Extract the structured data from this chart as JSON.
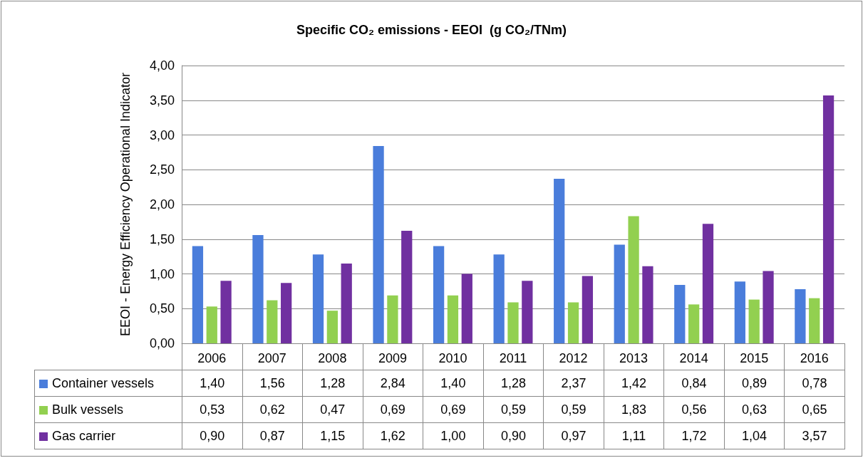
{
  "chart_data": {
    "type": "bar",
    "title": "Specific CO₂ emissions - EEOI  (g CO₂/TNm)",
    "ylabel": "EEOI - Energy Efficiency Operational Indicator",
    "categories": [
      "2006",
      "2007",
      "2008",
      "2009",
      "2010",
      "2011",
      "2012",
      "2013",
      "2014",
      "2015",
      "2016"
    ],
    "series": [
      {
        "name": "Container vessels",
        "color": "#4a7ddb",
        "values": [
          1.4,
          1.56,
          1.28,
          2.84,
          1.4,
          1.28,
          2.37,
          1.42,
          0.84,
          0.89,
          0.78
        ],
        "value_labels": [
          "1,40",
          "1,56",
          "1,28",
          "2,84",
          "1,40",
          "1,28",
          "2,37",
          "1,42",
          "0,84",
          "0,89",
          "0,78"
        ]
      },
      {
        "name": "Bulk vessels",
        "color": "#92d050",
        "values": [
          0.53,
          0.62,
          0.47,
          0.69,
          0.69,
          0.59,
          0.59,
          1.83,
          0.56,
          0.63,
          0.65
        ],
        "value_labels": [
          "0,53",
          "0,62",
          "0,47",
          "0,69",
          "0,69",
          "0,59",
          "0,59",
          "1,83",
          "0,56",
          "0,63",
          "0,65"
        ]
      },
      {
        "name": "Gas carrier",
        "color": "#7030a0",
        "values": [
          0.9,
          0.87,
          1.15,
          1.62,
          1.0,
          0.9,
          0.97,
          1.11,
          1.72,
          1.04,
          3.57
        ],
        "value_labels": [
          "0,90",
          "0,87",
          "1,15",
          "1,62",
          "1,00",
          "0,90",
          "0,97",
          "1,11",
          "1,72",
          "1,04",
          "3,57"
        ]
      }
    ],
    "ylim": [
      0,
      4
    ],
    "yticks": [
      {
        "value": 0,
        "label": "0,00"
      },
      {
        "value": 0.5,
        "label": "0,50"
      },
      {
        "value": 1,
        "label": "1,00"
      },
      {
        "value": 1.5,
        "label": "1,50"
      },
      {
        "value": 2,
        "label": "2,00"
      },
      {
        "value": 2.5,
        "label": "2,50"
      },
      {
        "value": 3,
        "label": "3,00"
      },
      {
        "value": 3.5,
        "label": "3,50"
      },
      {
        "value": 4,
        "label": "4,00"
      }
    ],
    "grid": "y",
    "legend": "bottom left"
  }
}
